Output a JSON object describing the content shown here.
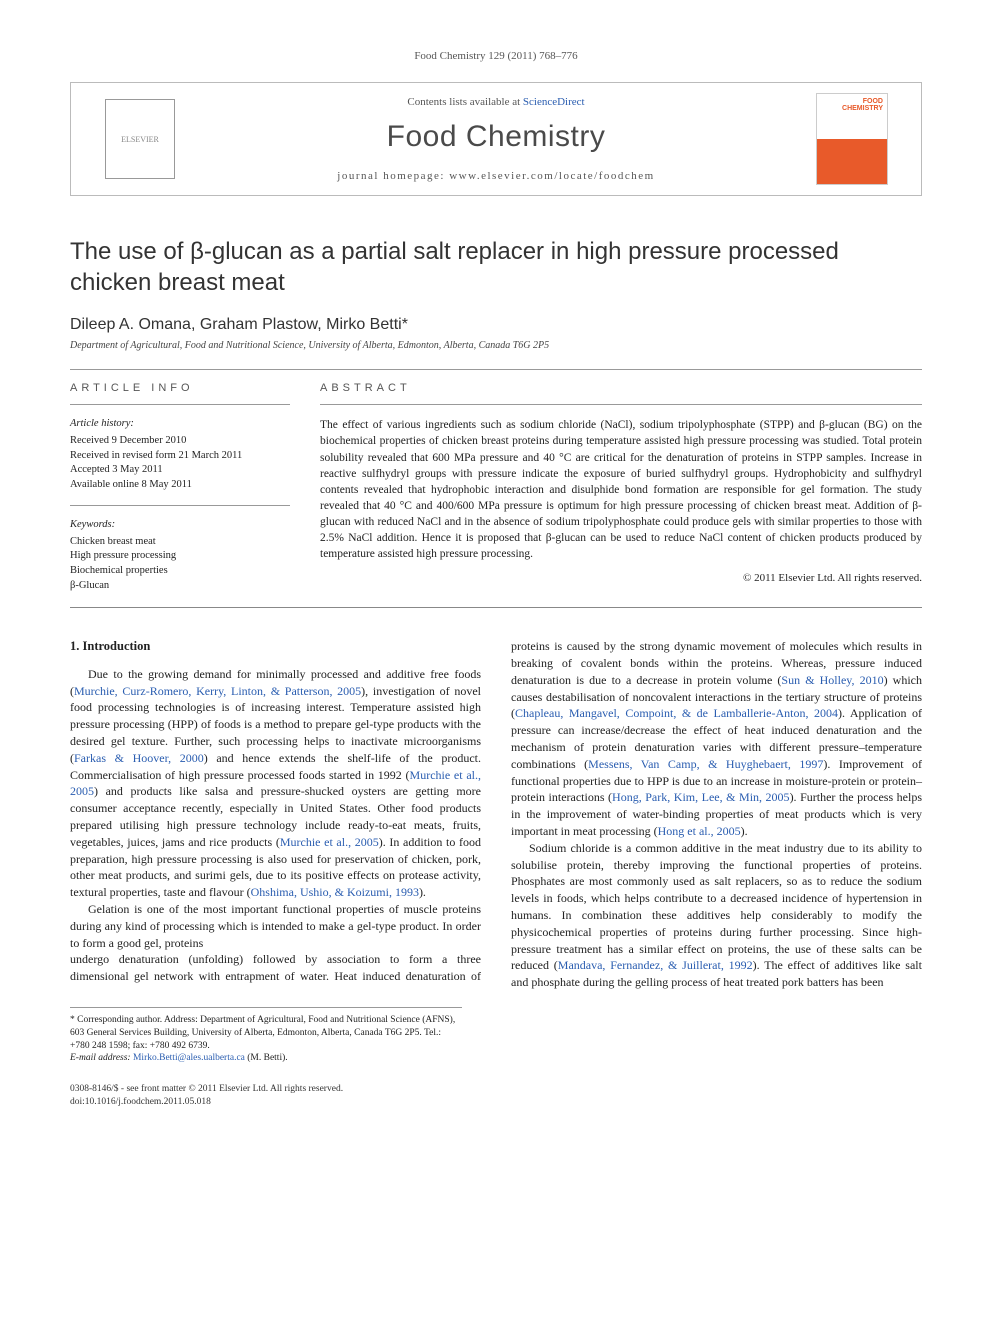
{
  "runner": "Food Chemistry 129 (2011) 768–776",
  "masthead": {
    "contents_prefix": "Contents lists available at ",
    "sciencedirect": "ScienceDirect",
    "journal": "Food Chemistry",
    "homepage_label": "journal homepage: ",
    "homepage_url": "www.elsevier.com/locate/foodchem",
    "publisher_mark": "ELSEVIER",
    "cover_text_1": "FOOD",
    "cover_text_2": "CHEMISTRY"
  },
  "title": "The use of β-glucan as a partial salt replacer in high pressure processed chicken breast meat",
  "authors_line": "Dileep A. Omana, Graham Plastow, Mirko Betti",
  "corr_mark": "*",
  "affiliation": "Department of Agricultural, Food and Nutritional Science, University of Alberta, Edmonton, Alberta, Canada T6G 2P5",
  "info": {
    "head": "ARTICLE INFO",
    "history_head": "Article history:",
    "history": [
      "Received 9 December 2010",
      "Received in revised form 21 March 2011",
      "Accepted 3 May 2011",
      "Available online 8 May 2011"
    ],
    "keywords_head": "Keywords:",
    "keywords": [
      "Chicken breast meat",
      "High pressure processing",
      "Biochemical properties",
      "β-Glucan"
    ]
  },
  "abstract": {
    "head": "ABSTRACT",
    "text": "The effect of various ingredients such as sodium chloride (NaCl), sodium tripolyphosphate (STPP) and β-glucan (BG) on the biochemical properties of chicken breast proteins during temperature assisted high pressure processing was studied. Total protein solubility revealed that 600 MPa pressure and 40 °C are critical for the denaturation of proteins in STPP samples. Increase in reactive sulfhydryl groups with pressure indicate the exposure of buried sulfhydryl groups. Hydrophobicity and sulfhydryl contents revealed that hydrophobic interaction and disulphide bond formation are responsible for gel formation. The study revealed that 40 °C and 400/600 MPa pressure is optimum for high pressure processing of chicken breast meat. Addition of β-glucan with reduced NaCl and in the absence of sodium tripolyphosphate could produce gels with similar properties to those with 2.5% NaCl addition. Hence it is proposed that β-glucan can be used to reduce NaCl content of chicken products produced by temperature assisted high pressure processing.",
    "copyright": "© 2011 Elsevier Ltd. All rights reserved."
  },
  "section1": {
    "head": "1. Introduction",
    "p1_a": "Due to the growing demand for minimally processed and additive free foods (",
    "p1_c1": "Murchie, Curz-Romero, Kerry, Linton, & Patterson, 2005",
    "p1_b": "), investigation of novel food processing technologies is of increasing interest. Temperature assisted high pressure processing (HPP) of foods is a method to prepare gel-type products with the desired gel texture. Further, such processing helps to inactivate microorganisms (",
    "p1_c2": "Farkas & Hoover, 2000",
    "p1_c": ") and hence extends the shelf-life of the product. Commercialisation of high pressure processed foods started in 1992 (",
    "p1_c3": "Murchie et al., 2005",
    "p1_d": ") and products like salsa and pressure-shucked oysters are getting more consumer acceptance recently, especially in United States. Other food products prepared utilising high pressure technology include ready-to-eat meats, fruits, vegetables, juices, jams and rice products (",
    "p1_c4": "Murchie et al., 2005",
    "p1_e": "). In addition to food preparation, high pressure processing is also used for preservation of chicken, pork, other meat products, and surimi gels, due to its positive effects on protease activity, textural properties, taste and flavour (",
    "p1_c5": "Ohshima, Ushio, & Koizumi, 1993",
    "p1_f": ").",
    "p2": "Gelation is one of the most important functional properties of muscle proteins during any kind of processing which is intended to make a gel-type product. In order to form a good gel, proteins",
    "p3_a": "undergo denaturation (unfolding) followed by association to form a three dimensional gel network with entrapment of water. Heat induced denaturation of proteins is caused by the strong dynamic movement of molecules which results in breaking of covalent bonds within the proteins. Whereas, pressure induced denaturation is due to a decrease in protein volume (",
    "p3_c1": "Sun & Holley, 2010",
    "p3_b": ") which causes destabilisation of noncovalent interactions in the tertiary structure of proteins (",
    "p3_c2": "Chapleau, Mangavel, Compoint, & de Lamballerie-Anton, 2004",
    "p3_c": "). Application of pressure can increase/decrease the effect of heat induced denaturation and the mechanism of protein denaturation varies with different pressure–temperature combinations (",
    "p3_c3": "Messens, Van Camp, & Huyghebaert, 1997",
    "p3_d": "). Improvement of functional properties due to HPP is due to an increase in moisture-protein or protein–protein interactions (",
    "p3_c4": "Hong, Park, Kim, Lee, & Min, 2005",
    "p3_e": "). Further the process helps in the improvement of water-binding properties of meat products which is very important in meat processing (",
    "p3_c5": "Hong et al., 2005",
    "p3_f": ").",
    "p4_a": "Sodium chloride is a common additive in the meat industry due to its ability to solubilise protein, thereby improving the functional properties of proteins. Phosphates are most commonly used as salt replacers, so as to reduce the sodium levels in foods, which helps contribute to a decreased incidence of hypertension in humans. In combination these additives help considerably to modify the physicochemical properties of proteins during further processing. Since high-pressure treatment has a similar effect on proteins, the use of these salts can be reduced (",
    "p4_c1": "Mandava, Fernandez, & Juillerat, 1992",
    "p4_b": "). The effect of additives like salt and phosphate during the gelling process of heat treated pork batters has been"
  },
  "footnote": {
    "corr_label": "* Corresponding author. Address: Department of Agricultural, Food and Nutritional Science (AFNS), 603 General Services Building, University of Alberta, Edmonton, Alberta, Canada T6G 2P5. Tel.: +780 248 1598; fax: +780 492 6739.",
    "email_label": "E-mail address: ",
    "email": "Mirko.Betti@ales.ualberta.ca",
    "email_tail": " (M. Betti)."
  },
  "footer": {
    "line1": "0308-8146/$ - see front matter © 2011 Elsevier Ltd. All rights reserved.",
    "line2": "doi:10.1016/j.foodchem.2011.05.018"
  },
  "colors": {
    "link": "#2a5db0",
    "cover_accent": "#e85a2a"
  }
}
